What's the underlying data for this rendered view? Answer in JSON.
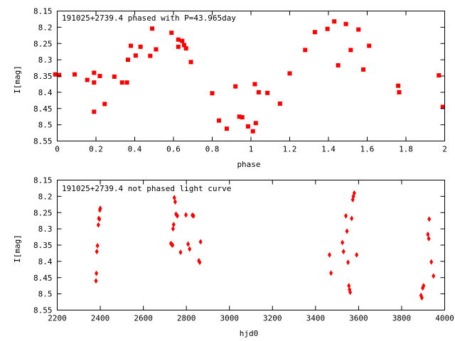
{
  "charts": [
    {
      "title": "191025+2739.4 phased with P=43.965day",
      "xlabel": "phase",
      "ylabel": "I[mag]",
      "xticks": [
        "0",
        "0.2",
        "0.4",
        "0.6",
        "0.8",
        "1",
        "1.2",
        "1.4",
        "1.6",
        "1.8",
        "2"
      ],
      "yticks": [
        "8.15",
        "8.2",
        "8.25",
        "8.3",
        "8.35",
        "8.4",
        "8.45",
        "8.5",
        "8.55"
      ]
    },
    {
      "title": "191025+2739.4 not phased light curve",
      "xlabel": "hjd0",
      "ylabel": "I[mag]",
      "xticks": [
        "2200",
        "2400",
        "2600",
        "2800",
        "3000",
        "3200",
        "3400",
        "3600",
        "3800",
        "4000"
      ],
      "yticks": [
        "8.15",
        "8.2",
        "8.25",
        "8.3",
        "8.35",
        "8.4",
        "8.45",
        "8.5",
        "8.55"
      ]
    }
  ],
  "chart_data": [
    {
      "type": "scatter",
      "title": "191025+2739.4 phased with P=43.965day",
      "xlabel": "phase",
      "ylabel": "I[mag]",
      "xlim": [
        0,
        2
      ],
      "ylim": [
        8.15,
        8.55
      ],
      "y_inverted": true,
      "grid": false,
      "color": "#ff0000",
      "marker": "filled-square",
      "points": [
        [
          -0.01,
          8.345
        ],
        [
          0.01,
          8.347
        ],
        [
          0.09,
          8.345
        ],
        [
          0.155,
          8.362
        ],
        [
          0.19,
          8.37
        ],
        [
          0.19,
          8.34
        ],
        [
          0.19,
          8.46
        ],
        [
          0.22,
          8.35
        ],
        [
          0.245,
          8.436
        ],
        [
          0.295,
          8.352
        ],
        [
          0.335,
          8.37
        ],
        [
          0.36,
          8.37
        ],
        [
          0.365,
          8.3
        ],
        [
          0.38,
          8.257
        ],
        [
          0.405,
          8.287
        ],
        [
          0.43,
          8.26
        ],
        [
          0.48,
          8.288
        ],
        [
          0.49,
          8.204
        ],
        [
          0.51,
          8.268
        ],
        [
          0.59,
          8.217
        ],
        [
          0.625,
          8.26
        ],
        [
          0.625,
          8.238
        ],
        [
          0.645,
          8.242
        ],
        [
          0.655,
          8.255
        ],
        [
          0.665,
          8.265
        ],
        [
          0.69,
          8.307
        ],
        [
          0.8,
          8.403
        ],
        [
          0.835,
          8.487
        ],
        [
          0.875,
          8.512
        ],
        [
          0.92,
          8.382
        ],
        [
          0.94,
          8.475
        ],
        [
          0.955,
          8.477
        ],
        [
          0.985,
          8.505
        ],
        [
          1.01,
          8.52
        ],
        [
          1.02,
          8.375
        ],
        [
          1.025,
          8.495
        ],
        [
          1.04,
          8.4
        ],
        [
          1.085,
          8.402
        ],
        [
          1.15,
          8.435
        ],
        [
          1.2,
          8.342
        ],
        [
          1.28,
          8.27
        ],
        [
          1.33,
          8.215
        ],
        [
          1.395,
          8.205
        ],
        [
          1.43,
          8.182
        ],
        [
          1.45,
          8.317
        ],
        [
          1.49,
          8.19
        ],
        [
          1.515,
          8.27
        ],
        [
          1.555,
          8.207
        ],
        [
          1.58,
          8.33
        ],
        [
          1.61,
          8.257
        ],
        [
          1.76,
          8.38
        ],
        [
          1.765,
          8.4
        ],
        [
          1.97,
          8.348
        ],
        [
          1.99,
          8.445
        ]
      ]
    },
    {
      "type": "scatter",
      "title": "191025+2739.4 not phased light curve",
      "xlabel": "hjd0",
      "ylabel": "I[mag]",
      "xlim": [
        2200,
        4000
      ],
      "ylim": [
        8.15,
        8.55
      ],
      "y_inverted": true,
      "grid": false,
      "color": "#ff0000",
      "marker": "filled-diamond",
      "points": [
        [
          2380,
          8.46
        ],
        [
          2382,
          8.437
        ],
        [
          2384,
          8.37
        ],
        [
          2387,
          8.352
        ],
        [
          2391,
          8.288
        ],
        [
          2393,
          8.268
        ],
        [
          2396,
          8.27
        ],
        [
          2398,
          8.242
        ],
        [
          2400,
          8.237
        ],
        [
          2728,
          8.345
        ],
        [
          2732,
          8.348
        ],
        [
          2736,
          8.35
        ],
        [
          2738,
          8.3
        ],
        [
          2741,
          8.287
        ],
        [
          2744,
          8.204
        ],
        [
          2748,
          8.217
        ],
        [
          2752,
          8.255
        ],
        [
          2758,
          8.26
        ],
        [
          2773,
          8.372
        ],
        [
          2798,
          8.257
        ],
        [
          2808,
          8.347
        ],
        [
          2815,
          8.362
        ],
        [
          2828,
          8.258
        ],
        [
          2833,
          8.26
        ],
        [
          2858,
          8.398
        ],
        [
          2862,
          8.403
        ],
        [
          2866,
          8.34
        ],
        [
          3465,
          8.38
        ],
        [
          3472,
          8.436
        ],
        [
          3525,
          8.342
        ],
        [
          3530,
          8.37
        ],
        [
          3541,
          8.26
        ],
        [
          3546,
          8.307
        ],
        [
          3551,
          8.403
        ],
        [
          3555,
          8.475
        ],
        [
          3558,
          8.487
        ],
        [
          3561,
          8.495
        ],
        [
          3568,
          8.268
        ],
        [
          3573,
          8.21
        ],
        [
          3576,
          8.2
        ],
        [
          3580,
          8.19
        ],
        [
          3591,
          8.38
        ],
        [
          3890,
          8.505
        ],
        [
          3894,
          8.512
        ],
        [
          3898,
          8.482
        ],
        [
          3902,
          8.475
        ],
        [
          3922,
          8.317
        ],
        [
          3926,
          8.33
        ],
        [
          3928,
          8.27
        ],
        [
          3938,
          8.402
        ],
        [
          3948,
          8.445
        ]
      ]
    }
  ]
}
